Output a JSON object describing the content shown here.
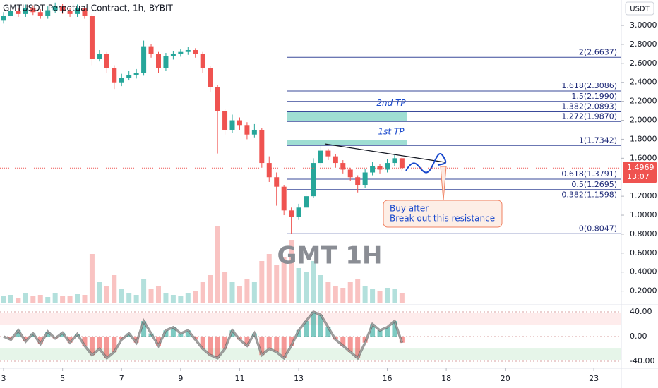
{
  "chart_data": {
    "type": "candlestick",
    "title": "GMTUSDT Perpetual Contract, 1h, BYBIT",
    "currency": "USDT",
    "watermark": "GMT 1H",
    "last_price": 1.4969,
    "countdown": "13:07",
    "up_color": "#26a69a",
    "down_color": "#ef5350",
    "x": [
      3,
      3.25,
      3.5,
      3.75,
      4,
      4.25,
      4.5,
      4.75,
      5,
      5.25,
      5.5,
      5.75,
      6,
      6.25,
      6.5,
      6.75,
      7,
      7.25,
      7.5,
      7.75,
      8,
      8.25,
      8.5,
      8.75,
      9,
      9.25,
      9.5,
      9.75,
      10,
      10.25,
      10.5,
      10.75,
      11,
      11.25,
      11.5,
      11.75,
      12,
      12.25,
      12.5,
      12.75,
      13,
      13.25,
      13.5,
      13.75,
      14,
      14.25,
      14.5,
      14.75,
      15,
      15.25,
      15.5,
      15.75,
      16,
      16.25,
      16.5
    ],
    "open": [
      3.05,
      3.1,
      3.15,
      3.12,
      3.18,
      3.14,
      3.1,
      3.16,
      3.2,
      3.15,
      3.12,
      3.18,
      3.1,
      2.65,
      2.7,
      2.55,
      2.4,
      2.45,
      2.48,
      2.5,
      2.78,
      2.7,
      2.55,
      2.68,
      2.7,
      2.72,
      2.74,
      2.7,
      2.55,
      2.35,
      2.1,
      1.9,
      2.0,
      1.95,
      1.85,
      1.9,
      1.55,
      1.4,
      1.3,
      1.05,
      0.98,
      1.08,
      1.2,
      1.55,
      1.68,
      1.62,
      1.55,
      1.48,
      1.4,
      1.32,
      1.45,
      1.52,
      1.48,
      1.55,
      1.6
    ],
    "high": [
      3.14,
      3.19,
      3.18,
      3.22,
      3.21,
      3.17,
      3.2,
      3.24,
      3.23,
      3.18,
      3.22,
      3.2,
      3.12,
      2.74,
      2.72,
      2.58,
      2.49,
      2.52,
      2.54,
      2.84,
      2.8,
      2.72,
      2.71,
      2.73,
      2.75,
      2.77,
      2.76,
      2.72,
      2.57,
      2.37,
      2.12,
      2.06,
      2.03,
      1.98,
      1.96,
      1.92,
      1.62,
      1.45,
      1.32,
      1.08,
      1.12,
      1.25,
      1.6,
      1.7342,
      1.7,
      1.64,
      1.58,
      1.5,
      1.42,
      1.49,
      1.56,
      1.54,
      1.59,
      1.64,
      1.62
    ],
    "low": [
      3.02,
      3.07,
      3.09,
      3.09,
      3.11,
      3.07,
      3.07,
      3.13,
      3.12,
      3.09,
      3.09,
      3.07,
      2.58,
      2.62,
      2.5,
      2.33,
      2.36,
      2.42,
      2.44,
      2.47,
      2.66,
      2.5,
      2.52,
      2.64,
      2.67,
      2.69,
      2.66,
      2.5,
      2.3,
      1.65,
      1.85,
      1.87,
      1.9,
      1.8,
      1.82,
      1.5,
      1.35,
      1.1,
      1.0,
      0.8047,
      0.95,
      1.05,
      1.18,
      1.52,
      1.58,
      1.5,
      1.44,
      1.36,
      1.24,
      1.29,
      1.42,
      1.44,
      1.45,
      1.52,
      1.46
    ],
    "close": [
      3.1,
      3.15,
      3.12,
      3.18,
      3.14,
      3.1,
      3.16,
      3.2,
      3.15,
      3.12,
      3.18,
      3.1,
      2.65,
      2.7,
      2.55,
      2.4,
      2.45,
      2.48,
      2.5,
      2.78,
      2.7,
      2.55,
      2.68,
      2.7,
      2.72,
      2.74,
      2.7,
      2.55,
      2.35,
      2.1,
      1.9,
      2.0,
      1.95,
      1.85,
      1.9,
      1.55,
      1.4,
      1.3,
      1.05,
      0.98,
      1.08,
      1.2,
      1.55,
      1.68,
      1.62,
      1.55,
      1.48,
      1.4,
      1.32,
      1.45,
      1.52,
      1.48,
      1.55,
      1.6,
      1.4969
    ],
    "volume": [
      10,
      12,
      8,
      15,
      10,
      12,
      9,
      14,
      11,
      10,
      13,
      12,
      70,
      30,
      25,
      40,
      20,
      15,
      12,
      35,
      20,
      25,
      15,
      12,
      10,
      14,
      18,
      30,
      40,
      110,
      45,
      30,
      25,
      35,
      30,
      60,
      70,
      55,
      65,
      90,
      50,
      45,
      60,
      40,
      30,
      25,
      22,
      30,
      35,
      25,
      20,
      18,
      22,
      20,
      15
    ],
    "xlim": [
      2.88,
      23.93
    ],
    "xticks": [
      3,
      5,
      7,
      9,
      11,
      13,
      16,
      18,
      20,
      23
    ],
    "ylim": [
      0.056,
      3.268
    ],
    "yticks": [
      {
        "value": 3,
        "label": "3.0000"
      },
      {
        "value": 2.8,
        "label": "2.8000"
      },
      {
        "value": 2.6,
        "label": "2.6000"
      },
      {
        "value": 2.4,
        "label": "2.4000"
      },
      {
        "value": 2.2,
        "label": "2.2000"
      },
      {
        "value": 2,
        "label": "2.0000"
      },
      {
        "value": 1.8,
        "label": "1.8000"
      },
      {
        "value": 1.6,
        "label": "1.6000"
      },
      {
        "value": 1.2,
        "label": "1.2000"
      },
      {
        "value": 1,
        "label": "1.0000"
      },
      {
        "value": 0.8,
        "label": "0.8000"
      },
      {
        "value": 0.6,
        "label": "0.6000"
      },
      {
        "value": 0.4,
        "label": "0.4000"
      },
      {
        "value": 0.2,
        "label": "0.2000"
      }
    ],
    "fib_levels": [
      {
        "label": "2(2.6637)",
        "value": 2.6637
      },
      {
        "label": "1.618(2.3086)",
        "value": 2.3086
      },
      {
        "label": "1.5(2.1990)",
        "value": 2.199
      },
      {
        "label": "1.382(2.0893)",
        "value": 2.0893
      },
      {
        "label": "1.272(1.9870)",
        "value": 1.987
      },
      {
        "label": "1(1.7342)",
        "value": 1.7342
      },
      {
        "label": "0.618(1.3791)",
        "value": 1.3791
      },
      {
        "label": "0.5(1.2695)",
        "value": 1.2695
      },
      {
        "label": "0.382(1.1598)",
        "value": 1.1598
      },
      {
        "label": "0(0.8047)",
        "value": 0.8047
      }
    ],
    "zones": [
      {
        "label": "2nd TP",
        "from": 1.987,
        "to": 2.0893
      },
      {
        "label": "1st TP",
        "from": 1.7342,
        "to": 1.79
      }
    ],
    "annotation": [
      "Buy after",
      "Break out this resistance"
    ],
    "oscillator": {
      "values": [
        0,
        -5,
        10,
        -8,
        5,
        -12,
        8,
        -3,
        6,
        -10,
        4,
        -15,
        -30,
        -20,
        -35,
        -25,
        -5,
        5,
        -10,
        25,
        5,
        -15,
        10,
        15,
        5,
        10,
        -5,
        -20,
        -30,
        -35,
        -20,
        10,
        -5,
        -15,
        5,
        -30,
        -20,
        -25,
        -35,
        -15,
        10,
        25,
        40,
        35,
        15,
        -5,
        -15,
        -25,
        -35,
        -10,
        20,
        10,
        15,
        25,
        -10
      ],
      "ylim": [
        -51.4,
        51.4
      ],
      "yticks": [
        {
          "value": 40,
          "label": "40.00"
        },
        {
          "value": 0,
          "label": "0.00"
        },
        {
          "value": -40,
          "label": "-40.00"
        }
      ]
    }
  }
}
